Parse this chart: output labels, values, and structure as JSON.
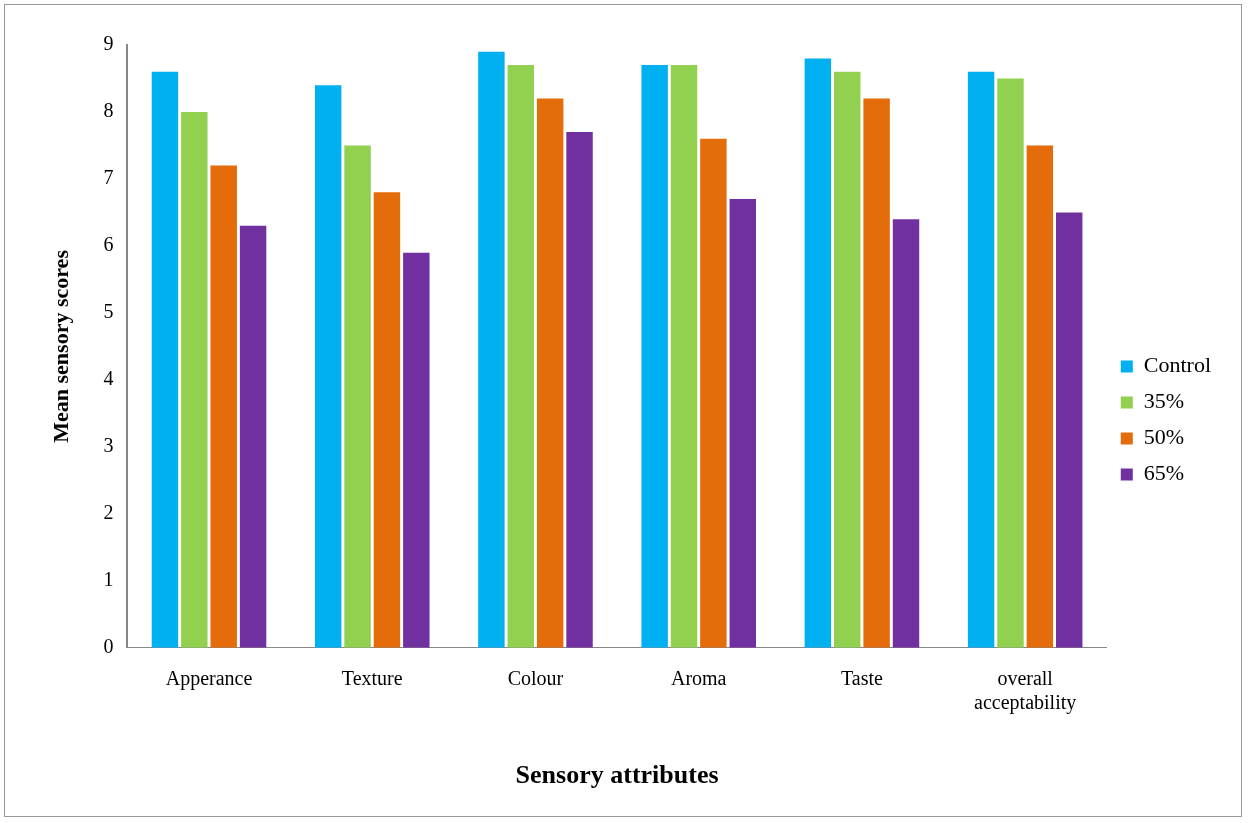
{
  "chart_data": {
    "type": "bar",
    "xlabel": "Sensory attributes",
    "ylabel": "Mean sensory scores",
    "categories": [
      "Apperance",
      "Texture",
      "Colour",
      "Aroma",
      "Taste",
      "overall acceptability"
    ],
    "series": [
      {
        "name": "Control",
        "color": "#00b0f0",
        "values": [
          8.6,
          8.4,
          8.9,
          8.7,
          8.8,
          8.6
        ]
      },
      {
        "name": "35%",
        "color": "#92d050",
        "values": [
          8.0,
          7.5,
          8.7,
          8.7,
          8.6,
          8.5
        ]
      },
      {
        "name": "50%",
        "color": "#e46c0a",
        "values": [
          7.2,
          6.8,
          8.2,
          7.6,
          8.2,
          7.5
        ]
      },
      {
        "name": "65%",
        "color": "#7030a0",
        "values": [
          6.3,
          5.9,
          7.7,
          6.7,
          6.4,
          6.5
        ]
      }
    ],
    "ylim": [
      0,
      9
    ],
    "yticks": [
      0,
      1,
      2,
      3,
      4,
      5,
      6,
      7,
      8,
      9
    ],
    "grid": false,
    "legend": "right"
  }
}
